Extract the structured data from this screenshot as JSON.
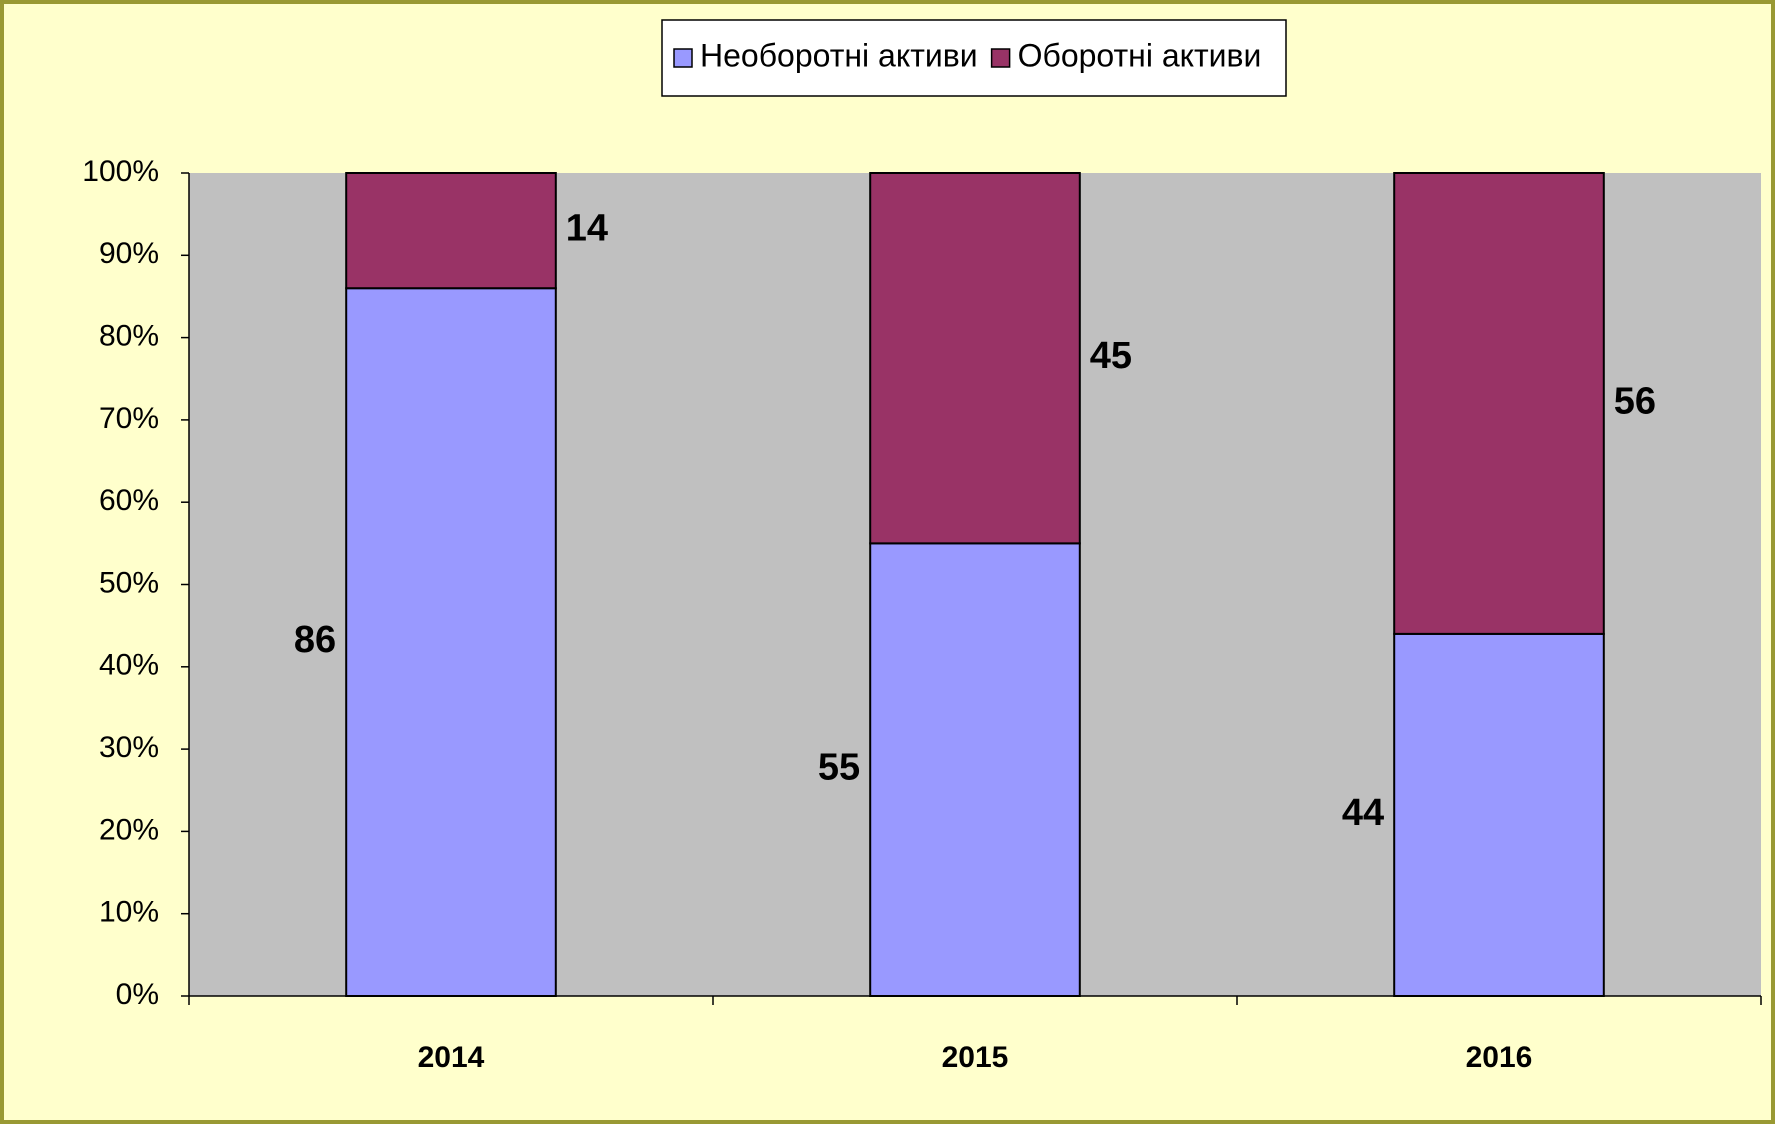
{
  "chart_data": {
    "type": "stacked_bar",
    "categories": [
      "2014",
      "2015",
      "2016"
    ],
    "series": [
      {
        "name": "Необоротні активи",
        "color": "#9999ff",
        "values": [
          86,
          55,
          44
        ]
      },
      {
        "name": "Оборотні активи",
        "color": "#993366",
        "values": [
          14,
          45,
          56
        ]
      }
    ],
    "ylim": [
      0,
      100
    ],
    "yticks": [
      {
        "value": 0,
        "label": "0%"
      },
      {
        "value": 10,
        "label": "10%"
      },
      {
        "value": 20,
        "label": "20%"
      },
      {
        "value": 30,
        "label": "30%"
      },
      {
        "value": 40,
        "label": "40%"
      },
      {
        "value": 50,
        "label": "50%"
      },
      {
        "value": 60,
        "label": "60%"
      },
      {
        "value": 70,
        "label": "70%"
      },
      {
        "value": 80,
        "label": "80%"
      },
      {
        "value": 90,
        "label": "90%"
      },
      {
        "value": 100,
        "label": "100%"
      }
    ],
    "legend": "top"
  }
}
